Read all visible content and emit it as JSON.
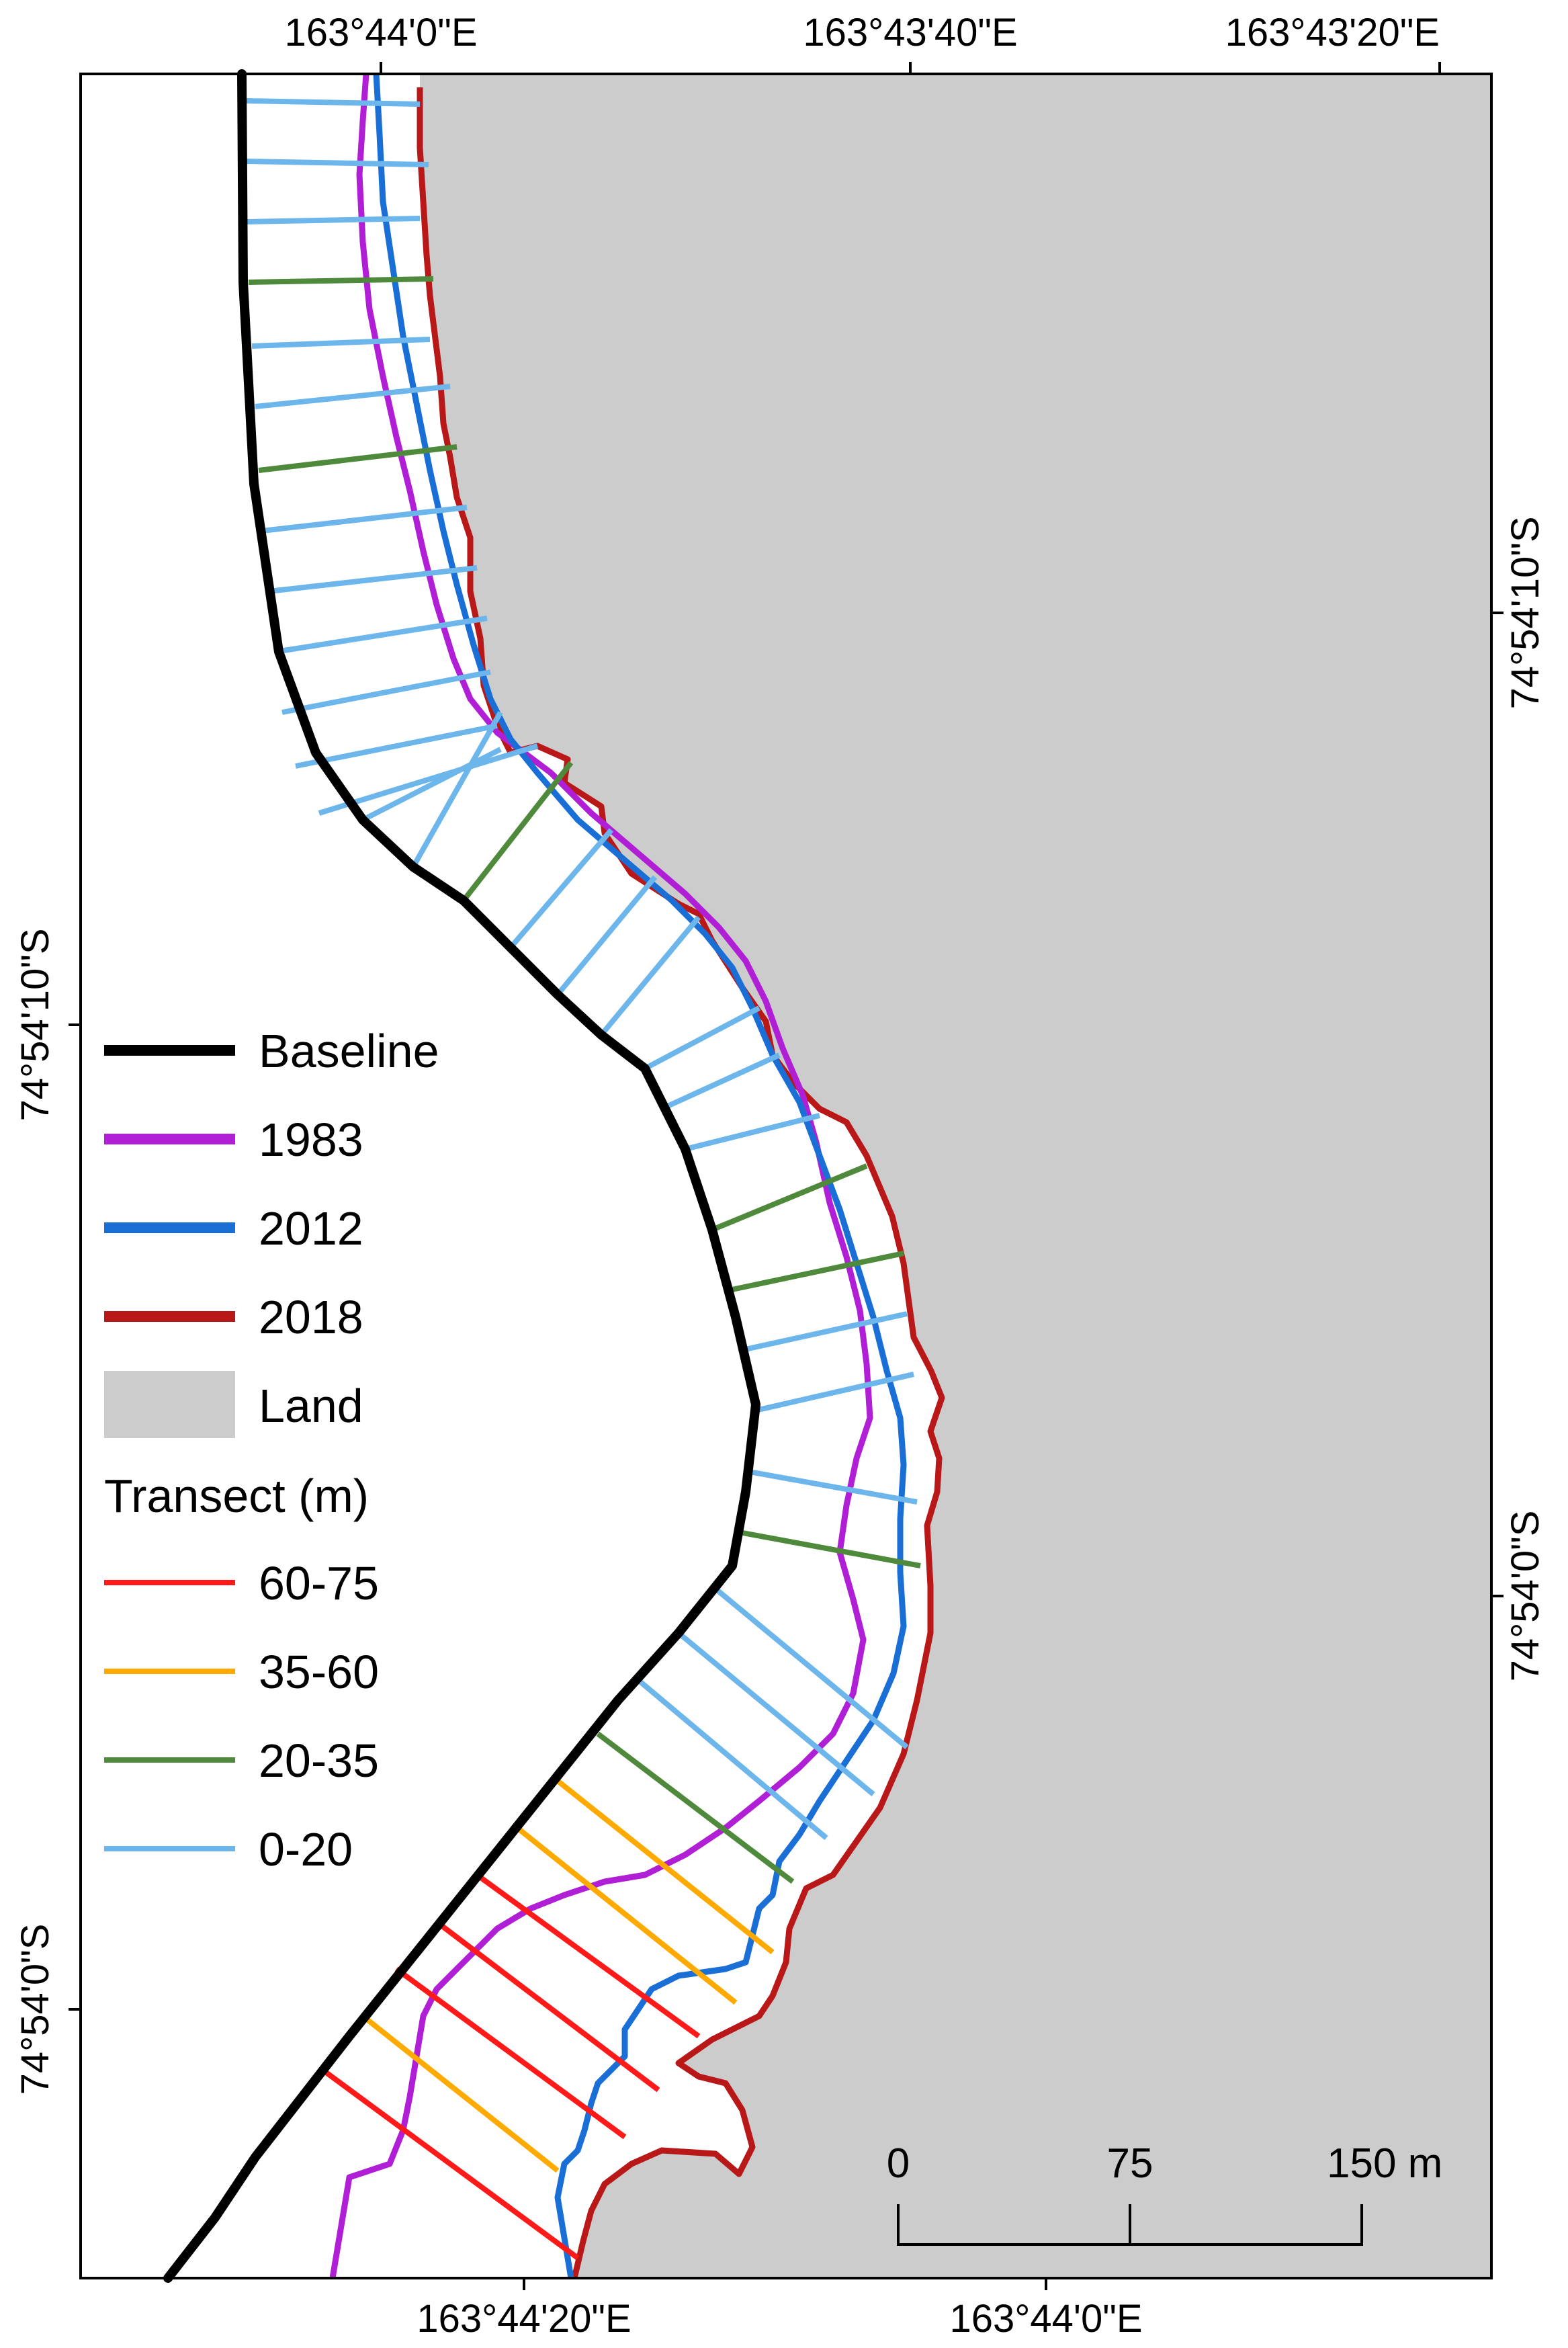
{
  "axes": {
    "top_labels": [
      "163°44'0\"E",
      "163°43'40\"E",
      "163°43'20\"E"
    ],
    "bottom_labels": [
      "163°44'20\"E",
      "163°44'0\"E"
    ],
    "left_labels": [
      "74°54'10\"S",
      "74°54'0\"S"
    ],
    "right_labels": [
      "74°54'10\"S",
      "74°54'0\"S"
    ]
  },
  "legend": {
    "items": [
      {
        "label": "Baseline",
        "color": "#000000",
        "kind": "line"
      },
      {
        "label": "1983",
        "color": "#b01fd6",
        "kind": "line"
      },
      {
        "label": "2012",
        "color": "#1a6fd6",
        "kind": "line"
      },
      {
        "label": "2018",
        "color": "#b81818",
        "kind": "line"
      },
      {
        "label": "Land",
        "color": "#cccccc",
        "kind": "patch"
      }
    ],
    "transect_title": "Transect (m)",
    "transect_items": [
      {
        "label": "60-75",
        "color": "#ff1a1a"
      },
      {
        "label": "35-60",
        "color": "#ffaa00"
      },
      {
        "label": "20-35",
        "color": "#4f8a3c"
      },
      {
        "label": "0-20",
        "color": "#6cb6ec"
      }
    ]
  },
  "scale_bar": {
    "labels": [
      "0",
      "75",
      "150 m"
    ]
  },
  "colors": {
    "land": "#cccccc",
    "sea": "#ffffff",
    "baseline": "#000000",
    "line_1983": "#b01fd6",
    "line_2012": "#1a6fd6",
    "line_2018": "#b81818"
  }
}
